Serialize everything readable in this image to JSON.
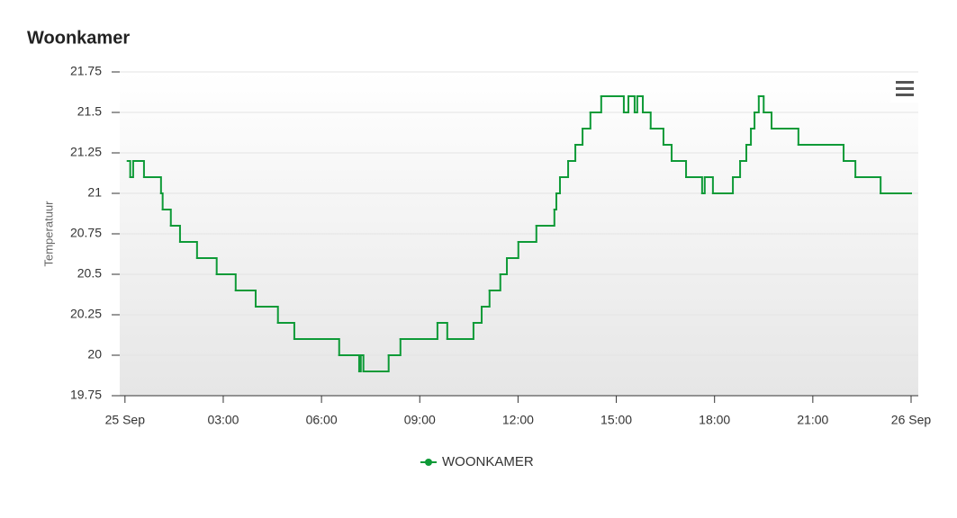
{
  "chart_data": {
    "type": "line",
    "step": true,
    "title": "Woonkamer",
    "ylabel": "Temperatuur",
    "xlim": [
      -0.16,
      24.22
    ],
    "xticks": [
      {
        "value": 0,
        "label": "25 Sep"
      },
      {
        "value": 3,
        "label": "03:00"
      },
      {
        "value": 6,
        "label": "06:00"
      },
      {
        "value": 9,
        "label": "09:00"
      },
      {
        "value": 12,
        "label": "12:00"
      },
      {
        "value": 15,
        "label": "15:00"
      },
      {
        "value": 18,
        "label": "18:00"
      },
      {
        "value": 21,
        "label": "21:00"
      },
      {
        "value": 24,
        "label": "26 Sep"
      }
    ],
    "ylim": [
      19.75,
      21.75
    ],
    "yticks": [
      19.75,
      20,
      20.25,
      20.5,
      20.75,
      21,
      21.25,
      21.5,
      21.75
    ],
    "grid": true,
    "legend": "bottom",
    "x": [
      0.08,
      0.16,
      0.25,
      0.58,
      1.1,
      1.15,
      1.4,
      1.68,
      2.2,
      2.8,
      3.38,
      3.99,
      4.67,
      5.17,
      6.54,
      7.15,
      7.2,
      7.28,
      8.05,
      8.41,
      9.54,
      9.84,
      10.64,
      10.89,
      11.13,
      11.46,
      11.66,
      12.01,
      12.56,
      13.11,
      13.17,
      13.28,
      13.53,
      13.75,
      13.97,
      14.21,
      14.54,
      15.23,
      15.37,
      15.56,
      15.64,
      15.81,
      16.05,
      16.44,
      16.69,
      17.13,
      17.62,
      17.7,
      17.95,
      18.56,
      18.78,
      18.97,
      19.11,
      19.22,
      19.35,
      19.5,
      19.74,
      20.56,
      21.94,
      22.3,
      23.07,
      24.0
    ],
    "series": [
      {
        "name": "WOONKAMER",
        "color": "#0e9a37",
        "values": [
          21.2,
          21.1,
          21.2,
          21.1,
          21.0,
          20.9,
          20.8,
          20.7,
          20.6,
          20.5,
          20.4,
          20.3,
          20.2,
          20.1,
          20.0,
          19.9,
          20.0,
          19.9,
          20.0,
          20.1,
          20.2,
          20.1,
          20.2,
          20.3,
          20.4,
          20.5,
          20.6,
          20.7,
          20.8,
          20.9,
          21.0,
          21.1,
          21.2,
          21.3,
          21.4,
          21.5,
          21.6,
          21.5,
          21.6,
          21.5,
          21.6,
          21.5,
          21.4,
          21.3,
          21.2,
          21.1,
          21.0,
          21.1,
          21.0,
          21.1,
          21.2,
          21.3,
          21.4,
          21.5,
          21.6,
          21.5,
          21.4,
          21.3,
          21.2,
          21.1,
          21.0,
          21.0
        ]
      }
    ]
  }
}
